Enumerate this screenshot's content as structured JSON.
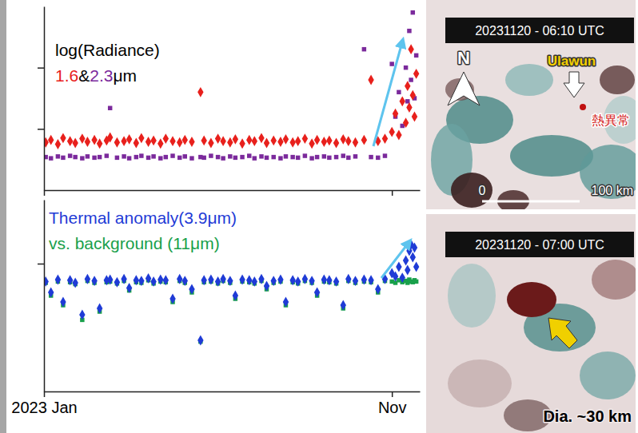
{
  "chart_data": [
    {
      "type": "scatter",
      "title": "log(Radiance)",
      "annotations": [
        "&",
        "μm"
      ],
      "x": [
        0.05,
        0.2,
        0.4,
        0.55,
        0.75,
        0.9,
        1.1,
        1.25,
        1.45,
        1.6,
        1.8,
        1.9,
        2.1,
        2.3,
        2.45,
        2.65,
        2.8,
        3.0,
        3.15,
        3.35,
        3.5,
        3.7,
        3.9,
        4.05,
        4.25,
        4.5,
        4.6,
        4.8,
        5.0,
        5.15,
        5.35,
        5.5,
        5.7,
        5.9,
        6.05,
        6.25,
        6.4,
        6.6,
        6.8,
        6.95,
        7.15,
        7.3,
        7.5,
        7.7,
        7.85,
        8.05,
        8.2,
        8.4,
        8.6,
        8.75,
        8.95,
        9.2,
        9.4,
        9.6,
        9.8,
        10.0,
        10.1,
        10.2,
        10.3,
        10.4,
        10.45,
        10.5,
        10.55,
        10.6,
        10.65,
        10.7
      ],
      "series": [
        {
          "name": "1.6",
          "color": "#e8201c",
          "marker": "diamond",
          "values": [
            0.78,
            0.82,
            0.75,
            0.85,
            0.8,
            0.77,
            0.84,
            0.79,
            0.82,
            0.76,
            0.81,
            0.86,
            0.78,
            0.8,
            0.83,
            0.77,
            0.85,
            0.79,
            0.81,
            0.76,
            0.84,
            0.8,
            0.78,
            0.82,
            0.79,
            1.6,
            0.81,
            0.77,
            0.84,
            0.8,
            0.78,
            0.83,
            0.76,
            0.82,
            0.8,
            0.85,
            0.77,
            0.81,
            0.79,
            0.83,
            0.78,
            0.8,
            0.84,
            0.76,
            0.82,
            0.79,
            0.81,
            0.77,
            0.83,
            0.8,
            0.78,
            0.82,
            1.8,
            0.8,
            0.84,
            0.95,
            1.25,
            0.9,
            1.45,
            1.1,
            1.7,
            1.35,
            2.3,
            1.55,
            1.2,
            1.9
          ]
        },
        {
          "name": "2.3",
          "color": "#7b2a9c",
          "marker": "square",
          "values": [
            0.54,
            0.52,
            0.55,
            0.53,
            0.56,
            0.54,
            0.52,
            0.55,
            0.53,
            0.54,
            0.56,
            1.34,
            0.53,
            0.55,
            0.52,
            0.54,
            0.56,
            0.53,
            0.55,
            0.52,
            0.54,
            0.56,
            0.53,
            0.55,
            0.52,
            0.54,
            0.53,
            0.56,
            0.54,
            0.52,
            0.55,
            0.53,
            0.54,
            0.56,
            0.52,
            0.55,
            0.53,
            0.54,
            0.52,
            0.55,
            0.54,
            0.53,
            0.56,
            0.52,
            0.54,
            0.55,
            0.53,
            0.54,
            0.56,
            0.53,
            0.55,
            2.3,
            0.54,
            0.53,
            0.56,
            2.06,
            1.2,
            1.6,
            1.05,
            2.0,
            1.45,
            2.6,
            1.8,
            2.9,
            1.5,
            2.2
          ]
        }
      ],
      "xlim": [
        0,
        10.8
      ],
      "xticks": [
        0,
        10
      ],
      "ylim": [
        0,
        3
      ],
      "yticks": [
        1,
        2
      ],
      "tick_labels": false
    },
    {
      "type": "scatter",
      "x": [
        0.05,
        0.2,
        0.4,
        0.55,
        0.75,
        0.9,
        1.1,
        1.25,
        1.45,
        1.6,
        1.8,
        1.9,
        2.1,
        2.3,
        2.45,
        2.65,
        2.8,
        3.0,
        3.15,
        3.35,
        3.5,
        3.7,
        3.9,
        4.05,
        4.25,
        4.5,
        4.6,
        4.8,
        5.0,
        5.15,
        5.35,
        5.5,
        5.7,
        5.9,
        6.05,
        6.25,
        6.4,
        6.6,
        6.8,
        6.95,
        7.15,
        7.3,
        7.5,
        7.7,
        7.85,
        8.05,
        8.2,
        8.4,
        8.6,
        8.75,
        8.95,
        9.2,
        9.4,
        9.6,
        9.8,
        10.0,
        10.1,
        10.2,
        10.3,
        10.4,
        10.45,
        10.5,
        10.55,
        10.6,
        10.65,
        10.7
      ],
      "series": [
        {
          "name": "Thermal anomaly(3.9μm)",
          "color": "#1f3bd6",
          "marker": "diamond",
          "values": [
            1.72,
            1.55,
            1.75,
            1.4,
            1.74,
            1.7,
            1.2,
            1.76,
            1.73,
            1.3,
            1.74,
            1.75,
            1.71,
            1.76,
            1.62,
            1.74,
            1.73,
            1.77,
            1.72,
            1.75,
            1.74,
            1.45,
            1.76,
            1.73,
            1.6,
            0.8,
            1.74,
            1.75,
            1.72,
            1.76,
            1.73,
            1.5,
            1.75,
            1.74,
            1.72,
            1.76,
            1.65,
            1.73,
            1.75,
            1.4,
            1.74,
            1.72,
            1.76,
            1.73,
            1.55,
            1.75,
            1.74,
            1.72,
            1.35,
            1.76,
            1.73,
            1.75,
            1.74,
            1.6,
            1.76,
            1.85,
            1.8,
            1.95,
            1.78,
            2.05,
            1.9,
            2.2,
            2.3,
            2.1,
            2.25,
            1.95
          ]
        },
        {
          "name": "vs. background (11μm)",
          "color": "#19a04b",
          "marker": "square",
          "values": [
            1.7,
            1.5,
            1.72,
            1.35,
            1.71,
            1.68,
            1.12,
            1.73,
            1.7,
            1.25,
            1.71,
            1.72,
            1.69,
            1.73,
            1.58,
            1.71,
            1.7,
            1.74,
            1.69,
            1.72,
            1.71,
            1.4,
            1.73,
            1.7,
            1.55,
            0.78,
            1.71,
            1.72,
            1.69,
            1.73,
            1.7,
            1.45,
            1.72,
            1.71,
            1.69,
            1.73,
            1.6,
            1.7,
            1.72,
            1.35,
            1.71,
            1.69,
            1.73,
            1.7,
            1.5,
            1.72,
            1.71,
            1.69,
            1.3,
            1.73,
            1.7,
            1.72,
            1.71,
            1.55,
            1.73,
            1.72,
            1.7,
            1.74,
            1.71,
            1.73,
            1.7,
            1.75,
            1.72,
            1.71,
            1.74,
            1.72
          ]
        }
      ],
      "xlim": [
        0,
        10.8
      ],
      "xticks": [
        {
          "value": 0,
          "label": "2023 Jan"
        },
        {
          "value": 10,
          "label": "Nov"
        }
      ],
      "ylim": [
        0,
        3
      ],
      "yticks": [
        2
      ],
      "tick_labels": "x"
    }
  ],
  "images": [
    {
      "timestamp": "20231120 - 06:10 UTC",
      "north": "N",
      "volcano": "Ulawun",
      "anomaly": "熱異常",
      "scale_start": "0",
      "scale_end": "100 km"
    },
    {
      "timestamp": "20231120 - 07:00 UTC",
      "annotation": "Dia. ~30 km"
    }
  ]
}
